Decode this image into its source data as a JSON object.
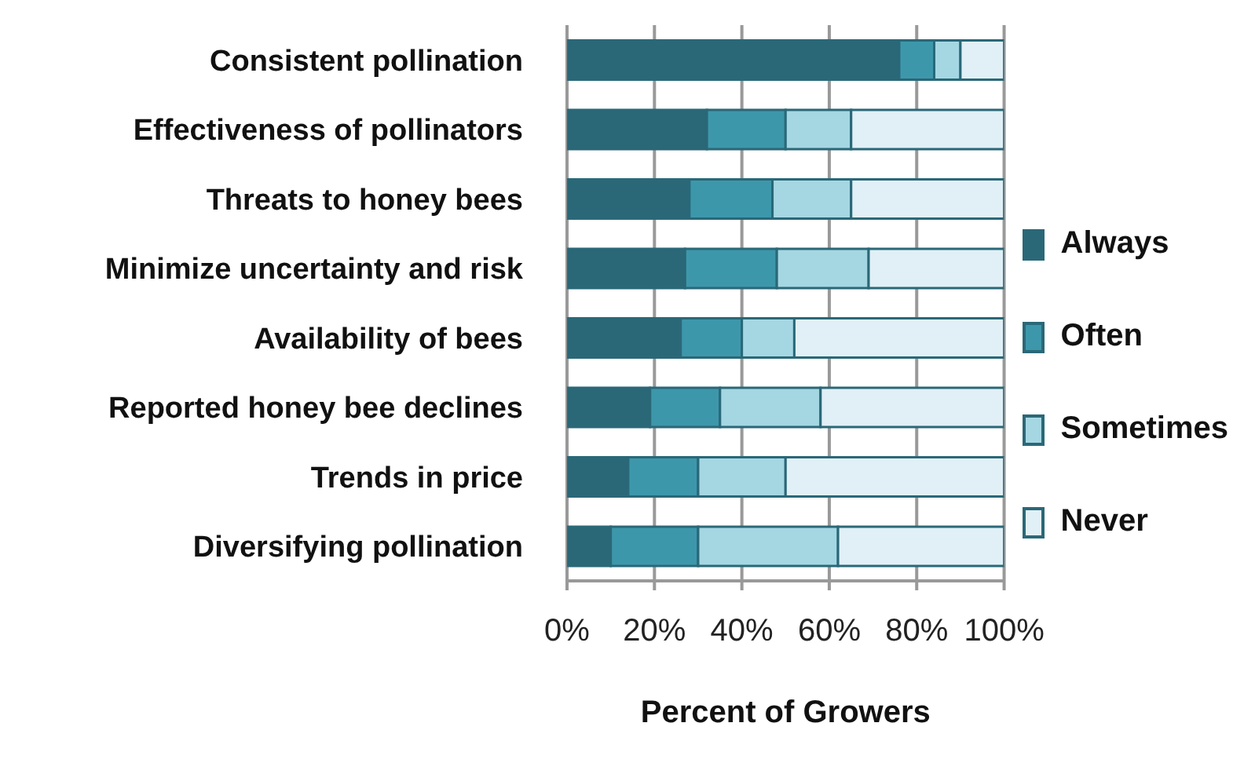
{
  "chart_data": {
    "type": "bar",
    "orientation": "horizontal",
    "stacked": true,
    "xlabel": "Percent of Growers",
    "categories": [
      "Consistent pollination",
      "Effectiveness of pollinators ",
      "Threats to honey bees",
      "Minimize uncertainty and risk",
      "Availability of bees",
      "Reported honey bee declines",
      "Trends in price",
      "Diversifying pollination "
    ],
    "series": [
      {
        "name": "Always",
        "color": "#2a6878",
        "values": [
          76,
          32,
          28,
          27,
          26,
          19,
          14,
          10
        ]
      },
      {
        "name": "Often",
        "color": "#3d97ab",
        "values": [
          8,
          18,
          19,
          21,
          14,
          16,
          16,
          20
        ]
      },
      {
        "name": "Sometimes",
        "color": "#a5d7e3",
        "values": [
          6,
          15,
          18,
          21,
          12,
          23,
          20,
          32
        ]
      },
      {
        "name": "Never",
        "color": "#e1f0f6",
        "values": [
          10,
          35,
          35,
          31,
          48,
          42,
          50,
          38
        ]
      }
    ],
    "xlim": [
      0,
      100
    ],
    "xticks": [
      {
        "value": 0,
        "label": "0%"
      },
      {
        "value": 20,
        "label": "20%"
      },
      {
        "value": 40,
        "label": "40%"
      },
      {
        "value": 60,
        "label": "60%"
      },
      {
        "value": 80,
        "label": "80%"
      },
      {
        "value": 100,
        "label": "100%"
      }
    ],
    "grid": "x",
    "legend": "right"
  }
}
